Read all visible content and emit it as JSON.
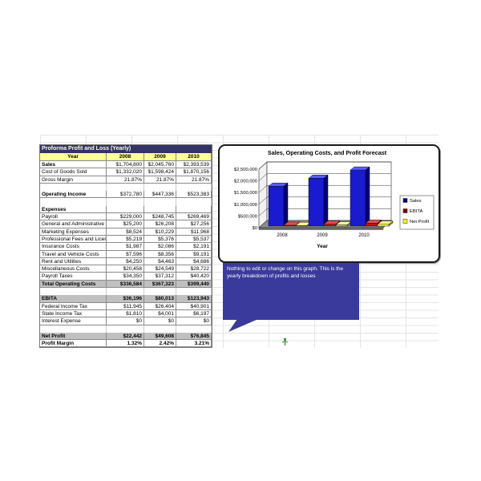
{
  "table": {
    "title": "Proforma Profit and Loss (Yearly)",
    "columns": [
      "Year",
      "2008",
      "2009",
      "2010"
    ],
    "rows": [
      {
        "type": "data",
        "bold_label": true,
        "label": "Sales",
        "values": [
          "$1,704,800",
          "$2,045,760",
          "$2,393,539"
        ]
      },
      {
        "type": "data",
        "label": "Cost of Goods Sold",
        "values": [
          "$1,332,020",
          "$1,598,424",
          "$1,870,156"
        ]
      },
      {
        "type": "data",
        "label": "Gross Margin",
        "values": [
          "21.87%",
          "21.87%",
          "21.87%"
        ]
      },
      {
        "type": "blank",
        "label": "",
        "values": [
          "",
          "",
          ""
        ]
      },
      {
        "type": "data",
        "bold_label": true,
        "label": "Operating Income",
        "values": [
          "$372,780",
          "$447,336",
          "$523,383"
        ]
      },
      {
        "type": "blank",
        "label": "",
        "values": [
          "",
          "",
          ""
        ]
      },
      {
        "type": "section",
        "bold_label": true,
        "label": "Expenses",
        "values": [
          "",
          "",
          ""
        ]
      },
      {
        "type": "data",
        "label": "Payroll",
        "values": [
          "$229,000",
          "$248,745",
          "$269,469"
        ]
      },
      {
        "type": "data",
        "label": "General and Administrative",
        "values": [
          "$25,200",
          "$26,208",
          "$27,256"
        ]
      },
      {
        "type": "data",
        "label": "Marketing Expenses",
        "values": [
          "$8,524",
          "$10,229",
          "$11,968"
        ]
      },
      {
        "type": "data",
        "label": "Professional Fees and Licensu",
        "values": [
          "$5,219",
          "$5,376",
          "$5,537"
        ]
      },
      {
        "type": "data",
        "label": "Insurance Costs",
        "values": [
          "$1,987",
          "$2,086",
          "$2,191"
        ]
      },
      {
        "type": "data",
        "label": "Travel and Vehicle Costs",
        "values": [
          "$7,596",
          "$8,356",
          "$9,191"
        ]
      },
      {
        "type": "data",
        "label": "Rent and Utilities",
        "values": [
          "$4,250",
          "$4,463",
          "$4,686"
        ]
      },
      {
        "type": "data",
        "label": "Miscellaneous Costs",
        "values": [
          "$20,458",
          "$24,549",
          "$28,722"
        ]
      },
      {
        "type": "data",
        "label": "Payroll Taxes",
        "values": [
          "$34,350",
          "$37,312",
          "$40,420"
        ]
      },
      {
        "type": "total",
        "label": "Total Operating Costs",
        "values": [
          "$336,584",
          "$367,323",
          "$399,440"
        ]
      },
      {
        "type": "blank",
        "label": "",
        "values": [
          "",
          "",
          ""
        ]
      },
      {
        "type": "total",
        "label": "EBITA",
        "values": [
          "$36,196",
          "$80,013",
          "$123,943"
        ]
      },
      {
        "type": "data",
        "label": "Federal Income Tax",
        "values": [
          "$11,945",
          "$26,404",
          "$40,901"
        ]
      },
      {
        "type": "data",
        "label": "State Income Tax",
        "values": [
          "$1,810",
          "$4,001",
          "$6,197"
        ]
      },
      {
        "type": "data",
        "label": "Interest Expense",
        "values": [
          "$0",
          "$0",
          "$0"
        ]
      },
      {
        "type": "blank",
        "label": "",
        "values": [
          "",
          "",
          ""
        ]
      },
      {
        "type": "total",
        "label": "Net Profit",
        "values": [
          "$22,442",
          "$49,608",
          "$76,845"
        ]
      },
      {
        "type": "bold",
        "label": "Profit Margin",
        "values": [
          "1.32%",
          "2.42%",
          "3.21%"
        ]
      }
    ]
  },
  "chart_data": {
    "type": "bar",
    "style": "3d-column",
    "title": "Sales, Operating Costs, and Profit Forecast",
    "xlabel": "Year",
    "ylabel": "",
    "categories": [
      "2008",
      "2009",
      "2010"
    ],
    "series": [
      {
        "name": "Sales",
        "values": [
          1704800,
          2045760,
          2393539
        ],
        "front": "#1A1ACF",
        "top": "#5B5BFF",
        "side": "#00007A",
        "legend": "#000080"
      },
      {
        "name": "EBITA",
        "values": [
          36196,
          80013,
          123943
        ],
        "front": "#C01010",
        "top": "#E05050",
        "side": "#700000",
        "legend": "#800000"
      },
      {
        "name": "Net Profit",
        "values": [
          22442,
          49608,
          76845
        ],
        "front": "#FFFF2E",
        "top": "#FFFF9E",
        "side": "#9E9E00",
        "legend": "#FFFF00"
      }
    ],
    "ylim": [
      0,
      2500000
    ],
    "ytick_labels": [
      "$0",
      "$500,000",
      "$1,000,000",
      "$1,500,000",
      "$2,000,000",
      "$2,500,000"
    ],
    "legend_position": "right",
    "grid": true
  },
  "callout": {
    "text": "Nothing to edit or change on this graph. This is the yearly breakdown of profits and losses",
    "color": "#3A3A9C"
  },
  "colors": {
    "table_title_bg": "#333366",
    "year_header_bg": "#FFFF99",
    "total_row_bg": "#C0C0C0",
    "marker_green": "#3F8F3F"
  }
}
